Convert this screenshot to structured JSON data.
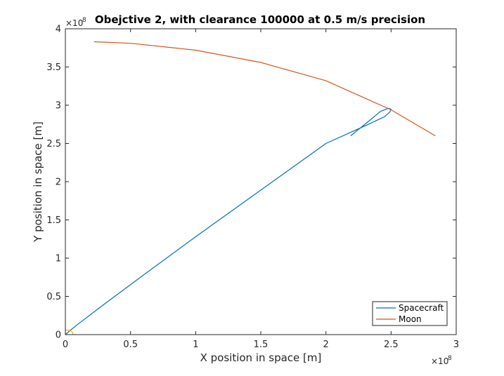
{
  "chart_data": {
    "type": "line",
    "title": "Obejctive 2, with clearance 100000 at 0.5 m/s precision",
    "xlabel": "X position in space [m]",
    "ylabel": "Y position in space [m]",
    "xlim": [
      0,
      3
    ],
    "ylim": [
      0,
      4
    ],
    "x_exponent": "8",
    "y_exponent": "8",
    "x_ticks": [
      0,
      0.5,
      1,
      1.5,
      2,
      2.5,
      3
    ],
    "x_tick_labels": [
      "0",
      "0.5",
      "1",
      "1.5",
      "2",
      "2.5",
      "3"
    ],
    "y_ticks": [
      0,
      0.5,
      1,
      1.5,
      2,
      2.5,
      3,
      3.5,
      4
    ],
    "y_tick_labels": [
      "0",
      "0.5",
      "1",
      "1.5",
      "2",
      "2.5",
      "3",
      "3.5",
      "4"
    ],
    "grid": false,
    "legend_position": "bottom-right",
    "series": [
      {
        "name": "Spacecraft",
        "color": "#0072BD",
        "x": [
          0.0,
          0.04,
          0.1,
          0.3,
          0.6,
          1.0,
          1.5,
          2.0,
          2.3,
          2.45,
          2.49,
          2.5,
          2.48,
          2.42,
          2.32,
          2.19
        ],
        "y": [
          0.0,
          0.06,
          0.14,
          0.4,
          0.78,
          1.28,
          1.89,
          2.5,
          2.73,
          2.85,
          2.91,
          2.95,
          2.96,
          2.92,
          2.78,
          2.6
        ]
      },
      {
        "name": "Moon",
        "color": "#D95319",
        "x": [
          0.22,
          0.5,
          1.0,
          1.5,
          2.0,
          2.5,
          2.84
        ],
        "y": [
          3.83,
          3.81,
          3.72,
          3.56,
          3.32,
          2.94,
          2.6
        ]
      },
      {
        "color": "#EDB120",
        "x": [
          0.0,
          0.02,
          0.04,
          0.055,
          0.06
        ],
        "y": [
          0.06,
          0.06,
          0.05,
          0.03,
          0.0
        ]
      }
    ]
  }
}
